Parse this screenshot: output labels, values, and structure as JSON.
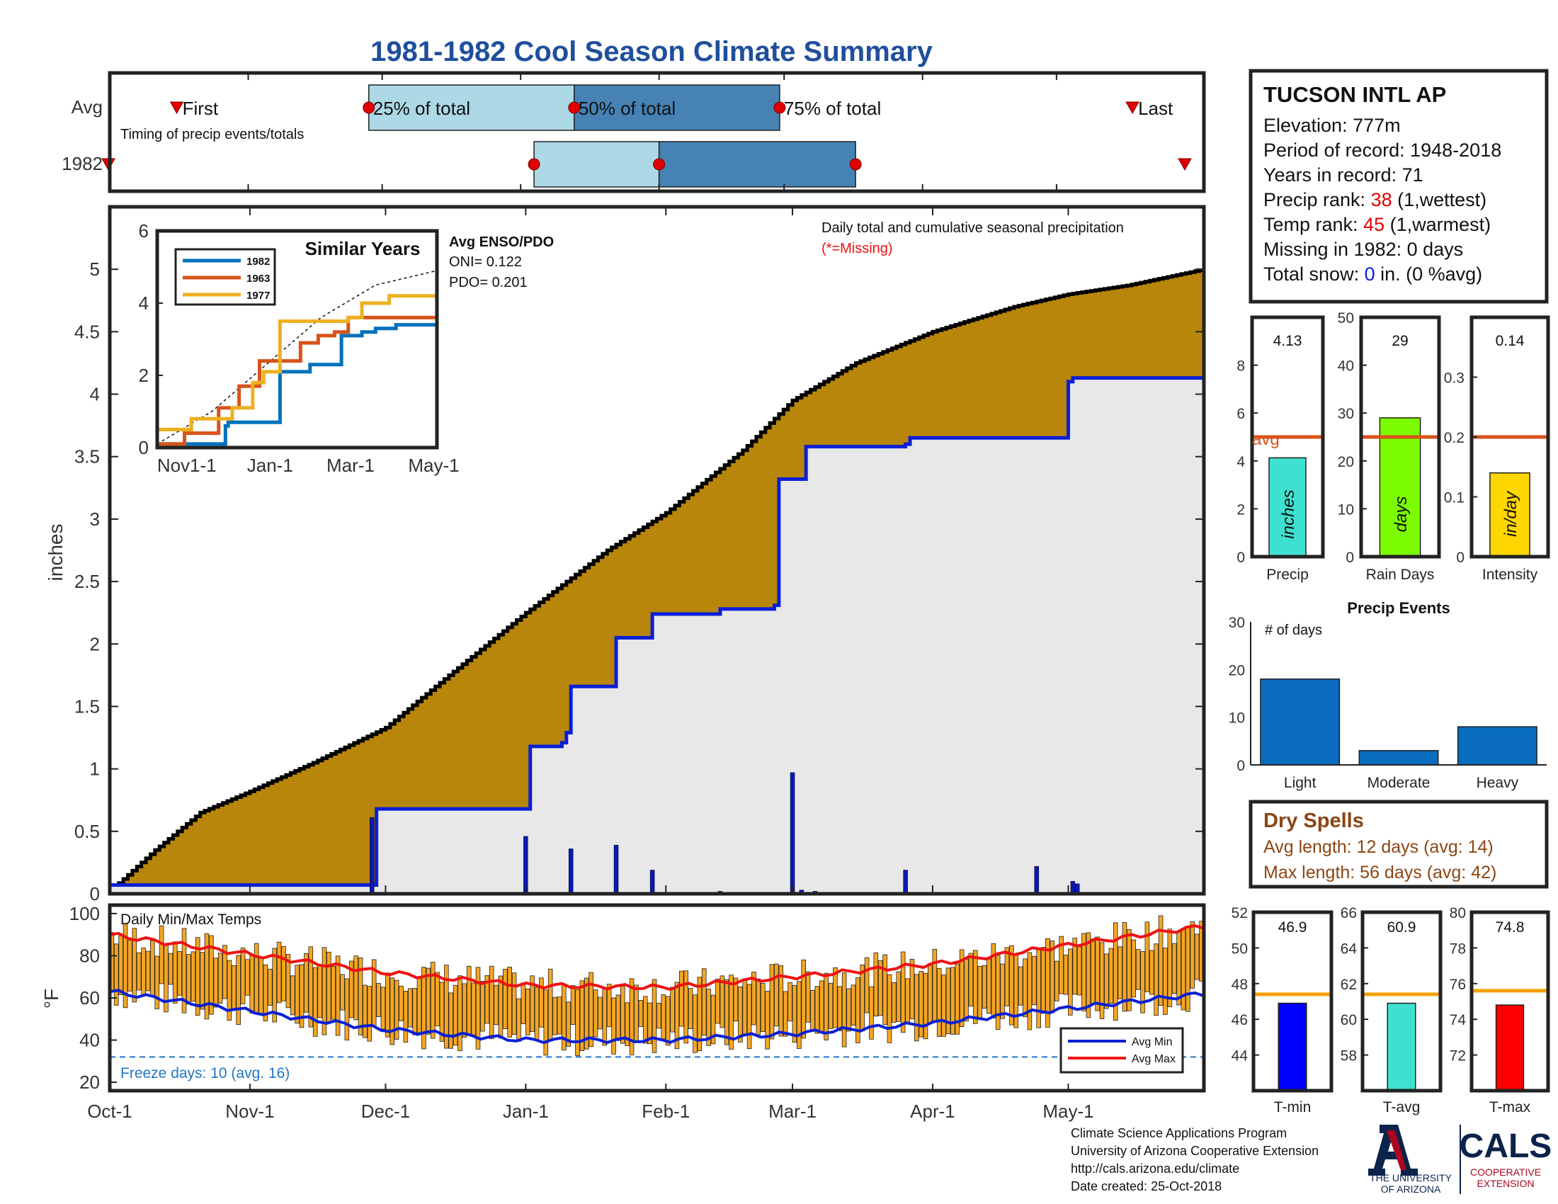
{
  "title": "1981-1982 Cool Season Climate Summary",
  "colors": {
    "title": "#1f4f9c",
    "cum_avg_fill": "#b8860b",
    "cum_year_line": "#0a1fd6",
    "cum_year_fill": "#e8e8e8",
    "bar_light": "#add8e6",
    "bar_dark": "#4682b4",
    "marker_red": "#e00000",
    "avg_line": "#d95319",
    "temp_bar": "#f5a623",
    "avg_min": "#0a1fd6",
    "avg_max": "#ee1111",
    "freeze": "#1f77c4",
    "events_bar": "#0a6cbf",
    "dry_text": "#8b4513",
    "precip_bar": "#40e0d0",
    "raindays_bar": "#7cfc00",
    "intensity_bar": "#ffd700",
    "tmin_bar": "#0000ff",
    "tavg_bar": "#40e0d0",
    "tmax_bar": "#ff0000",
    "tavg_line": "#f5a000",
    "s1982": "#0072bd",
    "s1963": "#d95319",
    "s1977": "#edb120"
  },
  "timing": {
    "row_avg": "Avg",
    "row_year": "1982",
    "caption": "Timing of precip events/totals",
    "first": "First",
    "last": "Last",
    "p25": "25% of total",
    "p50": "50% of total",
    "p75": "75% of total",
    "avg_days": {
      "first": 15,
      "p25": 58,
      "p50": 104,
      "p75": 150,
      "last": 229
    },
    "year_days": {
      "first": 0,
      "p25": 95,
      "p50": 123,
      "p75": 167,
      "last": 245
    }
  },
  "station": {
    "name": "TUCSON INTL AP",
    "elevation": "Elevation: 777m",
    "period": "Period of record: 1948-2018",
    "years": "Years in record: 71",
    "precip_rank_label": "Precip rank: ",
    "precip_rank_value": "38",
    "precip_rank_note": " (1,wettest)",
    "temp_rank_label": "Temp rank: ",
    "temp_rank_value": "45",
    "temp_rank_note": " (1,warmest)",
    "missing": "Missing in 1982: 0 days",
    "snow_label": "Total snow: ",
    "snow_value": "0",
    "snow_note": " in. (0 %avg)"
  },
  "main_chart": {
    "ylabel": "inches",
    "note": "Daily total and cumulative seasonal precipitation",
    "missing_note": "(*=Missing)",
    "y_ticks": [
      "0",
      "0.5",
      "1",
      "1.5",
      "2",
      "2.5",
      "3",
      "3.5",
      "4",
      "4.5",
      "5"
    ],
    "x_ticks": [
      "Oct-1",
      "Nov-1",
      "Dec-1",
      "Jan-1",
      "Feb-1",
      "Mar-1",
      "Apr-1",
      "May-1"
    ],
    "x_tick_days": [
      0,
      31,
      61,
      92,
      123,
      151,
      182,
      212
    ],
    "enso_title": "Avg ENSO/PDO",
    "oni": "ONI= 0.122",
    "pdo": "PDO= 0.201"
  },
  "similar": {
    "title": "Similar Years",
    "legend": [
      "1982",
      "1963",
      "1977"
    ],
    "y_ticks": [
      "0",
      "2",
      "4",
      "6"
    ],
    "x_ticks": [
      "Nov1-1",
      "Jan-1",
      "Mar-1",
      "May-1"
    ]
  },
  "temps": {
    "label": "Daily Min/Max Temps",
    "ylabel": "°F",
    "y_ticks": [
      "20",
      "40",
      "60",
      "80",
      "100"
    ],
    "freeze_note": "Freeze days: 10 (avg. 16)",
    "legend_min": "Avg Min",
    "legend_max": "Avg Max"
  },
  "small_bars": [
    {
      "label": "Precip",
      "unit": "inches",
      "value": 4.13,
      "value_text": "4.13",
      "avg": 5.0,
      "avg_text": "avg",
      "ymax": 10,
      "ticks": [
        "0",
        "2",
        "4",
        "6",
        "8"
      ]
    },
    {
      "label": "Rain Days",
      "unit": "days",
      "value": 29,
      "value_text": "29",
      "avg": 25,
      "ymax": 50,
      "ticks": [
        "0",
        "10",
        "20",
        "30",
        "40",
        "50"
      ]
    },
    {
      "label": "Intensity",
      "unit": "in/day",
      "value": 0.14,
      "value_text": "0.14",
      "avg": 0.2,
      "ymax": 0.4,
      "ticks": [
        "0",
        "0.1",
        "0.2",
        "0.3"
      ]
    }
  ],
  "events": {
    "title": "Precip Events",
    "ylabel": "# of days",
    "ticks": [
      "0",
      "10",
      "20",
      "30"
    ],
    "categories": [
      "Light",
      "Moderate",
      "Heavy"
    ],
    "values": [
      18,
      3,
      8
    ]
  },
  "dry": {
    "title": "Dry Spells",
    "avg": "Avg length: 12 days (avg: 14)",
    "max": "Max length: 56 days (avg: 42)"
  },
  "temp_bars": [
    {
      "label": "T-min",
      "value": 46.9,
      "value_text": "46.9",
      "avg": 47.4,
      "ymin": 42,
      "ymax": 52,
      "ticks": [
        "44",
        "46",
        "48",
        "50",
        "52"
      ],
      "tick_vals": [
        44,
        46,
        48,
        50,
        52
      ]
    },
    {
      "label": "T-avg",
      "value": 60.9,
      "value_text": "60.9",
      "avg": 61.4,
      "ymin": 56,
      "ymax": 66,
      "ticks": [
        "58",
        "60",
        "62",
        "64",
        "66"
      ],
      "tick_vals": [
        58,
        60,
        62,
        64,
        66
      ]
    },
    {
      "label": "T-max",
      "value": 74.8,
      "value_text": "74.8",
      "avg": 75.6,
      "ymin": 70,
      "ymax": 80,
      "ticks": [
        "72",
        "74",
        "76",
        "78",
        "80"
      ],
      "tick_vals": [
        72,
        74,
        76,
        78,
        80
      ]
    }
  ],
  "footer": {
    "line1": "Climate Science Applications Program",
    "line2": "University of Arizona Cooperative Extension",
    "line3": "http://cals.arizona.edu/climate",
    "line4": " Date created: 25-Oct-2018",
    "ua1": "THE UNIVERSITY",
    "ua2": "OF ARIZONA",
    "cals": "CALS",
    "cals1": "COOPERATIVE",
    "cals2": "EXTENSION"
  },
  "chart_data": [
    {
      "type": "area",
      "title": "Daily total and cumulative seasonal precipitation",
      "ylabel": "inches",
      "xlim_days": [
        0,
        242
      ],
      "ylim": [
        0,
        5.5
      ],
      "avg_cumulative": {
        "days": [
          0,
          10,
          20,
          31,
          45,
          61,
          75,
          92,
          110,
          123,
          140,
          151,
          165,
          182,
          200,
          212,
          225,
          242
        ],
        "values": [
          0.02,
          0.35,
          0.65,
          0.82,
          1.05,
          1.33,
          1.75,
          2.25,
          2.75,
          3.05,
          3.55,
          3.95,
          4.25,
          4.5,
          4.7,
          4.8,
          4.87,
          5.0
        ]
      },
      "year_cumulative": {
        "days": [
          0,
          58,
          59,
          92,
          93,
          100,
          101,
          102,
          103,
          104,
          111,
          112,
          119,
          120,
          135,
          147,
          148,
          153,
          154,
          176,
          177,
          212,
          213,
          242
        ],
        "values": [
          0.07,
          0.07,
          0.68,
          0.68,
          1.18,
          1.21,
          1.29,
          1.66,
          1.66,
          1.66,
          1.66,
          2.05,
          2.05,
          2.24,
          2.28,
          2.31,
          3.32,
          3.32,
          3.58,
          3.6,
          3.65,
          4.1,
          4.13,
          4.13
        ]
      },
      "daily_precip": {
        "days": [
          58,
          92,
          102,
          112,
          120,
          135,
          151,
          153,
          156,
          176,
          205,
          213,
          214
        ],
        "values": [
          0.61,
          0.46,
          0.36,
          0.39,
          0.19,
          0.02,
          0.97,
          0.03,
          0.02,
          0.19,
          0.22,
          0.1,
          0.08
        ]
      }
    },
    {
      "type": "line",
      "title": "Similar Years",
      "series": [
        {
          "name": "1982",
          "x": [
            0,
            30,
            50,
            52,
            80,
            90,
            112,
            128,
            135,
            150,
            160,
            175,
            205
          ],
          "y": [
            0.1,
            0.1,
            0.6,
            0.7,
            0.7,
            2.1,
            2.3,
            2.3,
            3.1,
            3.2,
            3.3,
            3.4,
            3.9
          ]
        },
        {
          "name": "1963",
          "x": [
            0,
            20,
            45,
            60,
            75,
            90,
            105,
            118,
            130,
            140,
            165,
            205
          ],
          "y": [
            0.1,
            0.4,
            1.1,
            1.7,
            2.4,
            2.4,
            2.9,
            3.1,
            3.2,
            3.6,
            3.6,
            3.5
          ]
        },
        {
          "name": "1977",
          "x": [
            0,
            25,
            40,
            55,
            70,
            78,
            90,
            110,
            140,
            150,
            170,
            205
          ],
          "y": [
            0.5,
            0.8,
            0.8,
            1.1,
            1.8,
            2.1,
            3.5,
            3.5,
            3.6,
            4.0,
            4.2,
            4.3
          ]
        }
      ],
      "avg_dashed": {
        "x": [
          0,
          40,
          80,
          120,
          160,
          205
        ],
        "y": [
          0.1,
          1.0,
          2.3,
          3.6,
          4.5,
          4.9
        ]
      },
      "ylim": [
        0,
        6
      ]
    },
    {
      "type": "bar",
      "title": "Daily Min/Max Temps",
      "ylabel": "°F",
      "ylim": [
        20,
        100
      ],
      "avg_min": {
        "days": [
          0,
          30,
          61,
          92,
          123,
          151,
          182,
          212,
          242
        ],
        "values": [
          63,
          54,
          45,
          40,
          40,
          43,
          48,
          55,
          62
        ]
      },
      "avg_max": {
        "days": [
          0,
          30,
          61,
          92,
          123,
          151,
          182,
          212,
          242
        ],
        "values": [
          90,
          81,
          72,
          66,
          65,
          70,
          76,
          85,
          94
        ]
      },
      "freeze_line": 32
    },
    {
      "type": "bar",
      "title": "Precip Events",
      "categories": [
        "Light",
        "Moderate",
        "Heavy"
      ],
      "values": [
        18,
        3,
        8
      ],
      "ylim": [
        0,
        30
      ]
    }
  ]
}
